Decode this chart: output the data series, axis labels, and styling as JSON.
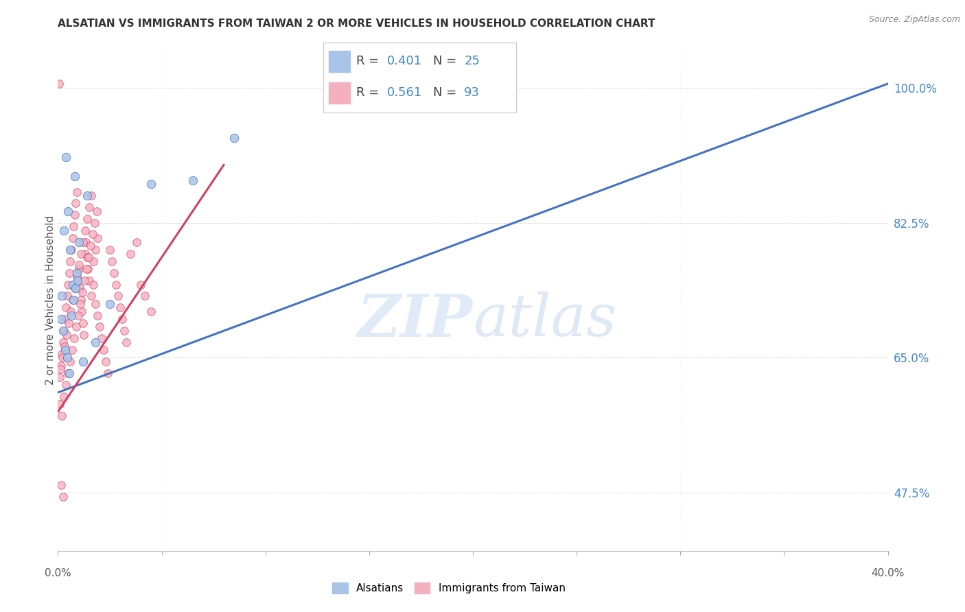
{
  "title": "ALSATIAN VS IMMIGRANTS FROM TAIWAN 2 OR MORE VEHICLES IN HOUSEHOLD CORRELATION CHART",
  "source": "Source: ZipAtlas.com",
  "ylabel_label": "2 or more Vehicles in Household",
  "xmin": 0.0,
  "xmax": 40.0,
  "ymin": 40.0,
  "ymax": 105.0,
  "yticks": [
    47.5,
    65.0,
    82.5,
    100.0
  ],
  "ytick_labels": [
    "47.5%",
    "65.0%",
    "82.5%",
    "100.0%"
  ],
  "legend_r1": "0.401",
  "legend_n1": "25",
  "legend_r2": "0.561",
  "legend_n2": "93",
  "legend_label1": "Alsatians",
  "legend_label2": "Immigrants from Taiwan",
  "blue_color": "#a8c4e8",
  "pink_color": "#f5b0c0",
  "trend_blue": "#4472c4",
  "trend_pink": "#d04060",
  "blue_trend_x0": 0.0,
  "blue_trend_y0": 60.5,
  "blue_trend_x1": 40.0,
  "blue_trend_y1": 100.5,
  "pink_trend_x0": 0.0,
  "pink_trend_y0": 58.0,
  "pink_trend_x1": 8.0,
  "pink_trend_y1": 90.0,
  "alsatians_x": [
    0.4,
    0.8,
    1.4,
    0.5,
    1.0,
    0.3,
    0.6,
    0.2,
    0.15,
    0.25,
    0.35,
    0.45,
    0.55,
    4.5,
    8.5,
    0.7,
    0.9,
    6.5,
    2.5,
    1.8,
    1.2,
    0.75,
    0.65,
    0.85,
    0.95
  ],
  "alsatians_y": [
    91.0,
    88.5,
    86.0,
    84.0,
    80.0,
    81.5,
    79.0,
    73.0,
    70.0,
    68.5,
    66.0,
    65.0,
    63.0,
    87.5,
    93.5,
    74.5,
    76.0,
    88.0,
    72.0,
    67.0,
    64.5,
    72.5,
    70.5,
    74.0,
    75.0
  ],
  "taiwan_x": [
    0.05,
    0.1,
    0.15,
    0.2,
    0.25,
    0.3,
    0.35,
    0.4,
    0.45,
    0.5,
    0.55,
    0.6,
    0.65,
    0.7,
    0.75,
    0.8,
    0.85,
    0.9,
    0.95,
    1.0,
    1.05,
    1.1,
    1.15,
    1.2,
    1.25,
    1.3,
    1.35,
    1.4,
    1.45,
    1.5,
    1.6,
    1.7,
    1.8,
    1.9,
    2.0,
    2.1,
    2.2,
    2.3,
    2.4,
    2.5,
    2.6,
    2.7,
    2.8,
    2.9,
    3.0,
    3.1,
    3.2,
    3.3,
    3.5,
    3.8,
    4.0,
    4.2,
    4.5,
    0.12,
    0.22,
    0.32,
    0.42,
    0.52,
    0.62,
    0.72,
    0.82,
    0.92,
    1.02,
    1.12,
    1.22,
    1.32,
    1.42,
    1.52,
    1.62,
    1.72,
    1.82,
    1.92,
    0.08,
    0.18,
    0.28,
    0.38,
    0.48,
    0.58,
    0.68,
    0.78,
    0.88,
    0.98,
    1.08,
    1.18,
    1.28,
    1.38,
    1.48,
    1.58,
    1.68,
    1.78,
    1.88,
    0.15,
    0.25
  ],
  "taiwan_y": [
    100.5,
    62.5,
    64.0,
    65.5,
    67.0,
    68.5,
    70.0,
    71.5,
    73.0,
    74.5,
    76.0,
    77.5,
    79.0,
    80.5,
    82.0,
    83.5,
    85.0,
    86.5,
    75.0,
    76.5,
    74.0,
    72.5,
    71.0,
    69.5,
    68.0,
    78.5,
    80.0,
    78.0,
    76.5,
    75.0,
    73.0,
    74.5,
    72.0,
    70.5,
    69.0,
    67.5,
    66.0,
    64.5,
    63.0,
    79.0,
    77.5,
    76.0,
    74.5,
    73.0,
    71.5,
    70.0,
    68.5,
    67.0,
    78.5,
    80.0,
    74.5,
    73.0,
    71.0,
    63.5,
    65.0,
    66.5,
    68.0,
    69.5,
    71.0,
    72.5,
    74.0,
    75.5,
    77.0,
    78.5,
    80.0,
    81.5,
    83.0,
    84.5,
    86.0,
    77.5,
    79.0,
    80.5,
    59.0,
    57.5,
    60.0,
    61.5,
    63.0,
    64.5,
    66.0,
    67.5,
    69.0,
    70.5,
    72.0,
    73.5,
    75.0,
    76.5,
    78.0,
    79.5,
    81.0,
    82.5,
    84.0,
    48.5,
    47.0
  ]
}
